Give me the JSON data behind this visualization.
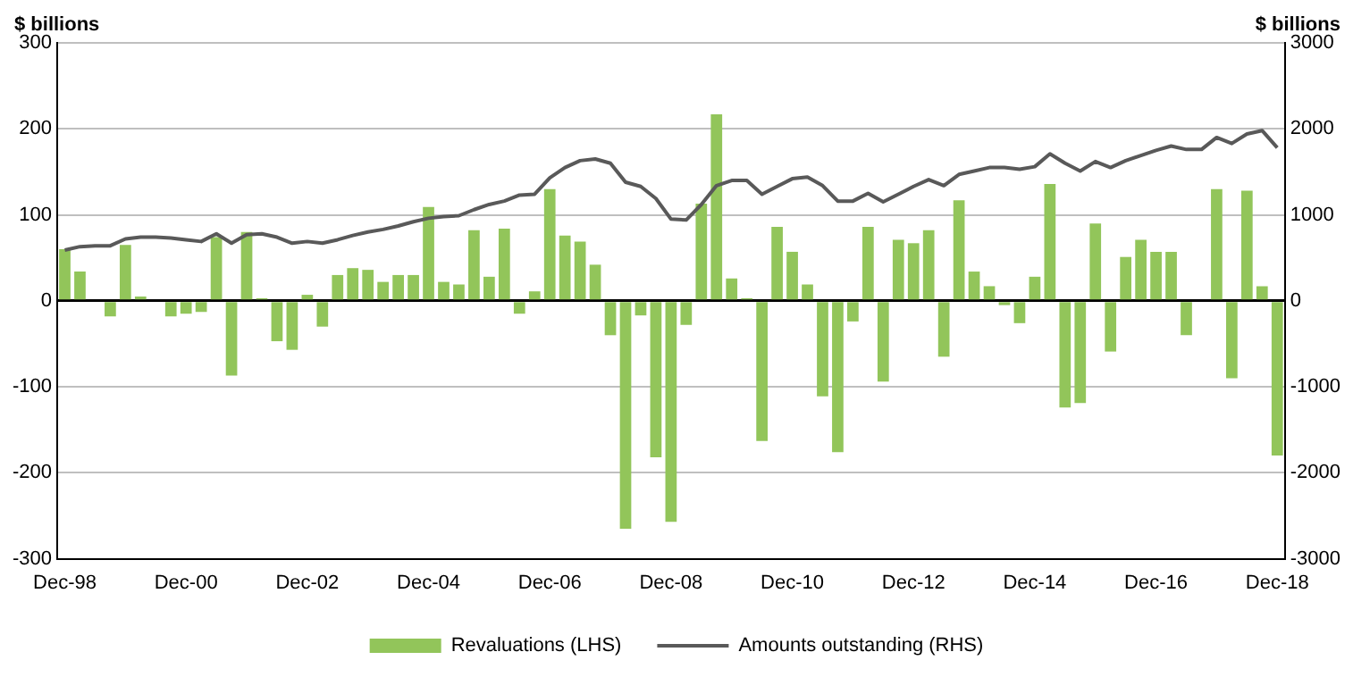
{
  "chart_data": {
    "type": "bar",
    "ylabel": "$ billions",
    "y2label": "$ billions",
    "categories": [
      "Dec-98",
      null,
      null,
      null,
      null,
      null,
      null,
      null,
      "Dec-00",
      null,
      null,
      null,
      null,
      null,
      null,
      null,
      "Dec-02",
      null,
      null,
      null,
      null,
      null,
      null,
      null,
      "Dec-04",
      null,
      null,
      null,
      null,
      null,
      null,
      null,
      "Dec-06",
      null,
      null,
      null,
      null,
      null,
      null,
      null,
      "Dec-08",
      null,
      null,
      null,
      null,
      null,
      null,
      null,
      "Dec-10",
      null,
      null,
      null,
      null,
      null,
      null,
      null,
      "Dec-12",
      null,
      null,
      null,
      null,
      null,
      null,
      null,
      "Dec-14",
      null,
      null,
      null,
      null,
      null,
      null,
      null,
      "Dec-16",
      null,
      null,
      null,
      null,
      null,
      null,
      null,
      "Dec-18"
    ],
    "series": [
      {
        "name": "Revaluations (LHS)",
        "color": "#92c55a",
        "values": [
          60,
          34,
          0,
          -18,
          65,
          5,
          0,
          -18,
          -15,
          -13,
          74,
          -87,
          80,
          3,
          -47,
          -57,
          7,
          -30,
          30,
          38,
          36,
          22,
          30,
          30,
          109,
          22,
          19,
          82,
          28,
          84,
          -15,
          11,
          130,
          76,
          69,
          42,
          -40,
          -265,
          -17,
          -182,
          -257,
          -28,
          113,
          217,
          26,
          3,
          -163,
          86,
          57,
          19,
          -111,
          -176,
          -24,
          86,
          -94,
          71,
          67,
          82,
          -65,
          117,
          34,
          17,
          -5,
          -26,
          28,
          136,
          -124,
          -119,
          90,
          -59,
          51,
          71,
          57,
          57,
          -40,
          0,
          130,
          -90,
          128,
          17,
          -180
        ]
      },
      {
        "name": "Amounts outstanding (RHS)",
        "type": "line",
        "axis": "y2",
        "color": "#595959",
        "values": [
          590,
          630,
          640,
          640,
          720,
          740,
          740,
          730,
          710,
          690,
          780,
          670,
          770,
          780,
          740,
          670,
          690,
          670,
          710,
          760,
          800,
          830,
          870,
          920,
          960,
          980,
          990,
          1060,
          1120,
          1160,
          1230,
          1240,
          1430,
          1550,
          1630,
          1650,
          1600,
          1380,
          1330,
          1190,
          950,
          940,
          1120,
          1340,
          1400,
          1400,
          1240,
          1330,
          1420,
          1440,
          1340,
          1160,
          1160,
          1250,
          1150,
          1240,
          1330,
          1410,
          1340,
          1470,
          1510,
          1550,
          1550,
          1530,
          1560,
          1710,
          1600,
          1510,
          1620,
          1550,
          1630,
          1690,
          1750,
          1800,
          1760,
          1760,
          1900,
          1830,
          1940,
          1980,
          1780
        ]
      }
    ],
    "ylim": [
      -300,
      300
    ],
    "yticks": [
      -300,
      -200,
      -100,
      0,
      100,
      200,
      300
    ],
    "y2lim": [
      -3000,
      3000
    ],
    "y2ticks": [
      -3000,
      -2000,
      -1000,
      0,
      1000,
      2000,
      3000
    ],
    "grid": "y",
    "legend": "bottom",
    "marker": "none"
  }
}
